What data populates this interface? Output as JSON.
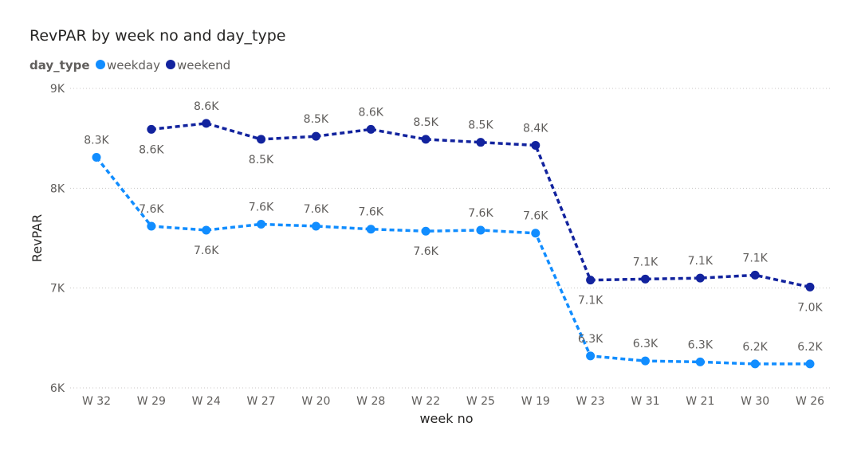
{
  "chart_data": {
    "type": "line",
    "title": "RevPAR by week no and day_type",
    "legend_title": "day_type",
    "legend_position": "top-left",
    "xlabel": "week no",
    "ylabel": "RevPAR",
    "ylim": [
      6000,
      9000
    ],
    "y_ticks": [
      {
        "value": 9000,
        "label": "9K"
      },
      {
        "value": 8000,
        "label": "8K"
      },
      {
        "value": 7000,
        "label": "7K"
      },
      {
        "value": 6000,
        "label": "6K"
      }
    ],
    "grid": true,
    "categories": [
      "W 32",
      "W 29",
      "W 24",
      "W 27",
      "W 20",
      "W 28",
      "W 22",
      "W 25",
      "W 19",
      "W 23",
      "W 31",
      "W 21",
      "W 30",
      "W 26"
    ],
    "series": [
      {
        "name": "weekday",
        "color": "#118dff",
        "values": [
          8310,
          7620,
          7580,
          7640,
          7620,
          7590,
          7570,
          7580,
          7550,
          6320,
          6270,
          6260,
          6240,
          6240
        ],
        "labels": [
          "8.3K",
          "7.6K",
          "7.6K",
          "7.6K",
          "7.6K",
          "7.6K",
          "7.6K",
          "7.6K",
          "7.6K",
          "6.3K",
          "6.3K",
          "6.3K",
          "6.2K",
          "6.2K"
        ],
        "label_pos": [
          "above",
          "above",
          "below",
          "above",
          "above",
          "above",
          "below",
          "above",
          "above",
          "above",
          "above",
          "above",
          "above",
          "above"
        ]
      },
      {
        "name": "weekend",
        "color": "#12239e",
        "values": [
          null,
          8590,
          8650,
          8490,
          8520,
          8590,
          8490,
          8460,
          8430,
          7080,
          7090,
          7100,
          7130,
          7010
        ],
        "labels": [
          null,
          "8.6K",
          "8.6K",
          "8.5K",
          "8.5K",
          "8.6K",
          "8.5K",
          "8.5K",
          "8.4K",
          "7.1K",
          "7.1K",
          "7.1K",
          "7.1K",
          "7.0K"
        ],
        "label_pos": [
          null,
          "below",
          "above",
          "below",
          "above",
          "above",
          "above",
          "above",
          "above",
          "below",
          "above",
          "above",
          "above",
          "below"
        ]
      }
    ]
  }
}
